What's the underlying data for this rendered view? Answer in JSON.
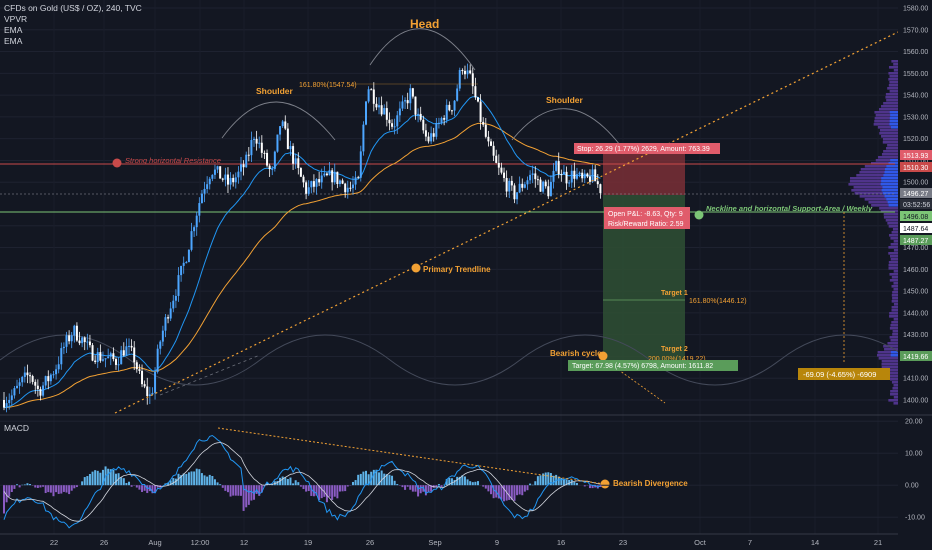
{
  "header": {
    "symbol_line": "CFDs on Gold (US$ / OZ), 240, TVC",
    "indicators": [
      "VPVR",
      "EMA",
      "EMA"
    ]
  },
  "macd": {
    "label": "MACD",
    "ticks": [
      "20.00",
      "10.00",
      "0.00",
      "-10.00"
    ]
  },
  "annotations": {
    "head": "Head",
    "shoulder_left": "Shoulder",
    "shoulder_right": "Shoulder",
    "fib_head": "161.80%(1547.54)",
    "resistance": "Strong horizontal Resistance",
    "trendline": "Primary Trendline",
    "neckline": "Neckline and horizontal Support-Area / Weekly",
    "bearish_cycle": "Bearish cycle",
    "target1": "Target 1",
    "target1_fib": "161.80%(1446.12)",
    "target2": "Target 2",
    "target2_fib": "200.00%(1419.22)",
    "bearish_divergence": "Bearish Divergence",
    "measure": "-69.09 (-4.65%) -6909"
  },
  "position": {
    "stop": "Stop: 26.29 (1.77%) 2629, Amount: 763.39",
    "open_pl": "Open P&L: -8.63, Qty: 9",
    "risk_reward": "Risk/Reward Ratio: 2.59",
    "target": "Target: 67.98 (4.57%) 6798, Amount: 1611.82"
  },
  "price_badges": {
    "b1513": "1513.93",
    "b1510": "1510.30",
    "b1496": "1496.27",
    "timer": "03:52:56",
    "b1496b": "1496.08",
    "b1487": "1487.64",
    "b1487b": "1487.27",
    "b1419": "1419.66"
  },
  "colors": {
    "background": "#131722",
    "up_candle": "#4da6ff",
    "down_candle": "#ffffff",
    "ema_fast": "#2196f3",
    "ema_slow": "#f2a134",
    "trendline": "#f2a134",
    "resistance_line": "#c94a4a",
    "support_line": "#7cc576",
    "stop_zone": "#7a2f36",
    "target_zone": "#2d4d33",
    "volume_profile": "#5b3a9e",
    "macd_pos": "#5fb3e8",
    "macd_neg": "#8b5cc4"
  },
  "chart_data": {
    "type": "candlestick",
    "instrument": "CFDs on Gold (US$ / OZ)",
    "timeframe": "240",
    "ylim": [
      1394,
      1584
    ],
    "y_ticks": [
      "1580.00",
      "1570.00",
      "1560.00",
      "1550.00",
      "1540.00",
      "1530.00",
      "1520.00",
      "1510.00",
      "1500.00",
      "1480.00",
      "1470.00",
      "1460.00",
      "1450.00",
      "1440.00",
      "1430.00",
      "1420.00",
      "1410.00",
      "1400.00"
    ],
    "x_ticks": [
      "22",
      "26",
      "Aug",
      "12:00",
      "12",
      "19",
      "26",
      "Sep",
      "9",
      "16",
      "23",
      "Oct",
      "7",
      "14",
      "21"
    ],
    "close_path": [
      1400,
      1402,
      1408,
      1412,
      1404,
      1409,
      1415,
      1425,
      1432,
      1428,
      1422,
      1420,
      1419,
      1418,
      1424,
      1420,
      1406,
      1401,
      1426,
      1441,
      1452,
      1465,
      1482,
      1497,
      1506,
      1503,
      1499,
      1503,
      1509,
      1523,
      1512,
      1503,
      1528,
      1516,
      1505,
      1496,
      1499,
      1501,
      1503,
      1500,
      1497,
      1500,
      1545,
      1538,
      1533,
      1526,
      1533,
      1541,
      1528,
      1519,
      1524,
      1532,
      1536,
      1554,
      1547,
      1531,
      1517,
      1507,
      1500,
      1494,
      1499,
      1504,
      1499,
      1496,
      1508,
      1502,
      1504,
      1500,
      1503,
      1497
    ],
    "levels": {
      "strong_horizontal_resistance": 1510.3,
      "neckline_support": 1496.08,
      "stop": 1513.93,
      "entry": 1496.27,
      "target_1": 1446.12,
      "target_2": 1419.22
    },
    "macd_ylim": [
      -14,
      21
    ]
  }
}
